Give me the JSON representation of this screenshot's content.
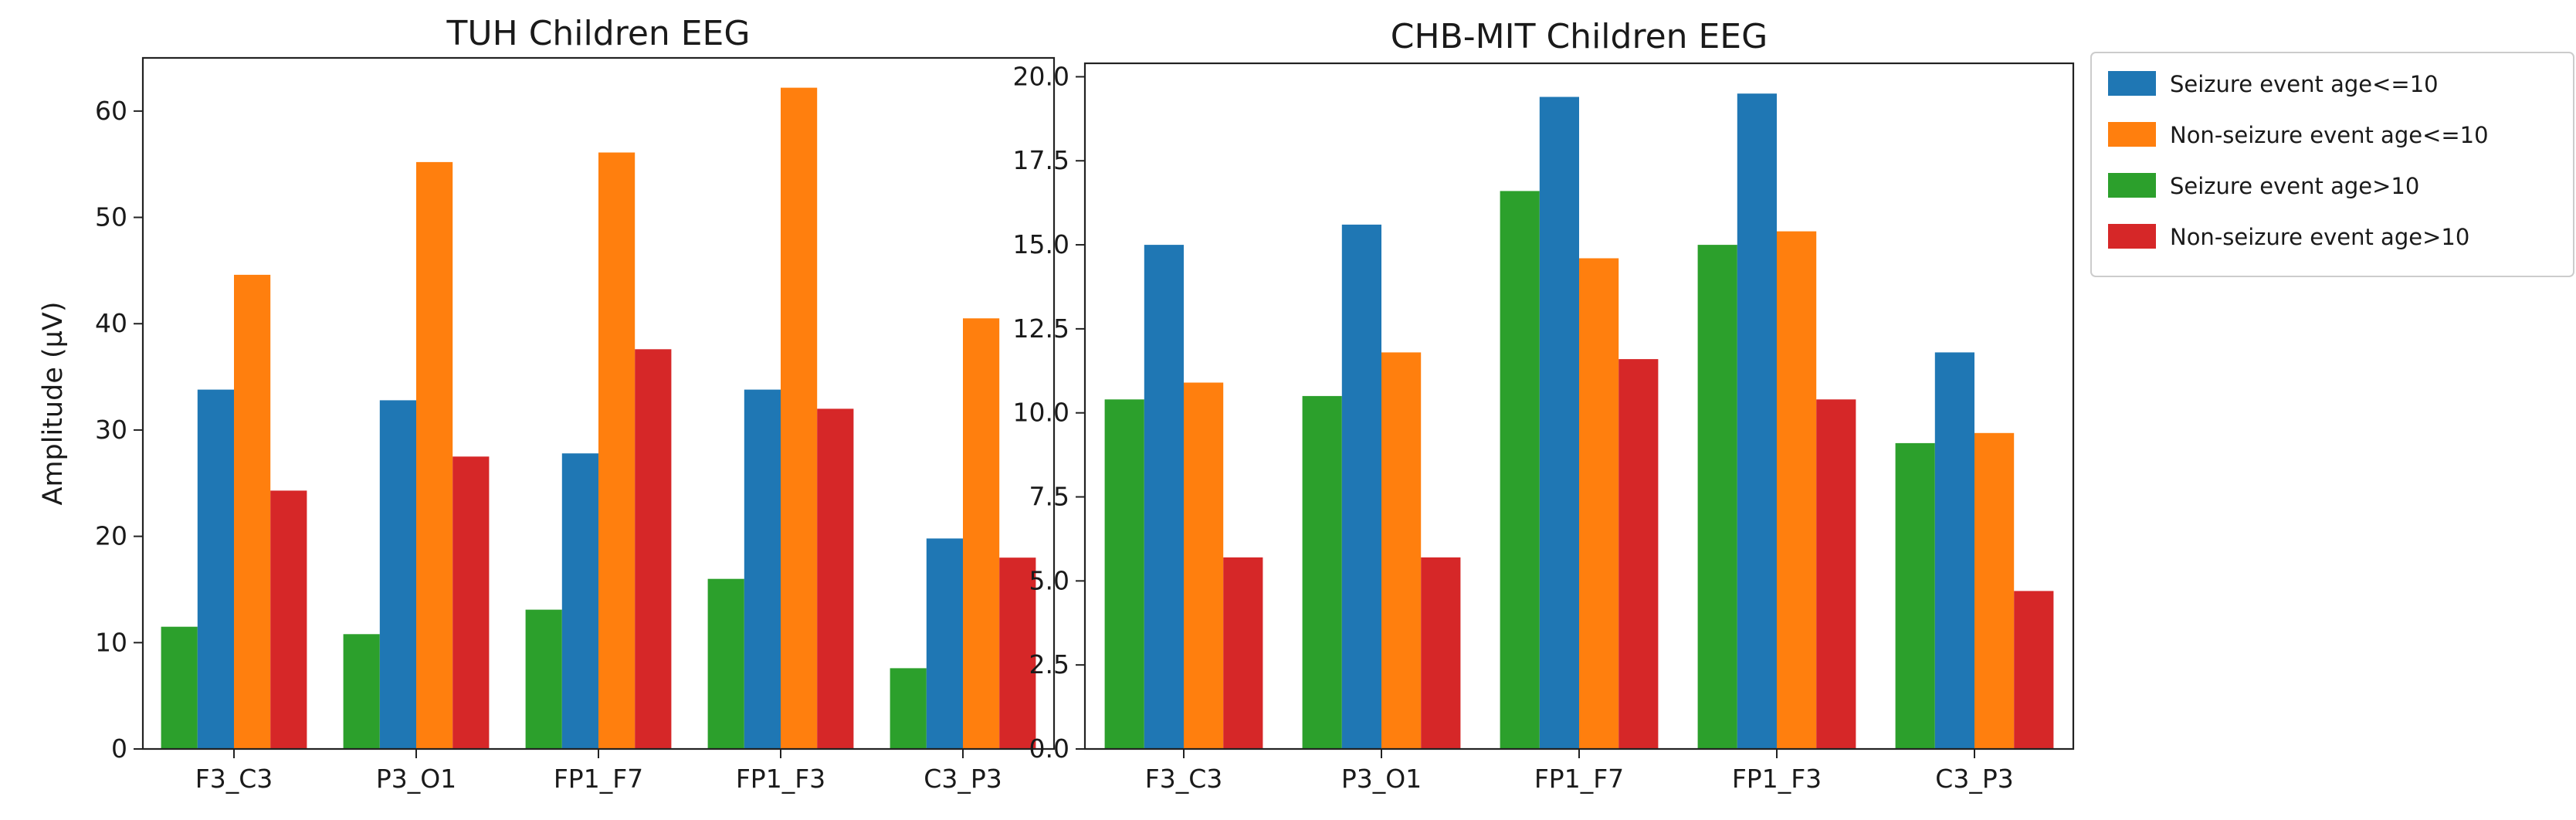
{
  "chart_data": [
    {
      "type": "bar",
      "title": "TUH Children EEG",
      "xlabel": "",
      "ylabel": "Amplitude (µV)",
      "ylim": [
        0,
        65
      ],
      "yticks": [
        0,
        10,
        20,
        30,
        40,
        50,
        60
      ],
      "categories": [
        "F3_C3",
        "P3_O1",
        "FP1_F7",
        "FP1_F3",
        "C3_P3"
      ],
      "series": [
        {
          "name": "Seizure event age>10",
          "color": "#2ca02c",
          "values": [
            11.5,
            10.8,
            13.1,
            16.0,
            7.6
          ]
        },
        {
          "name": "Seizure event age<=10",
          "color": "#1f77b4",
          "values": [
            33.8,
            32.8,
            27.8,
            33.8,
            19.8
          ]
        },
        {
          "name": "Non-seizure event age<=10",
          "color": "#ff7f0e",
          "values": [
            44.6,
            55.2,
            56.1,
            62.2,
            40.5
          ]
        },
        {
          "name": "Non-seizure event age>10",
          "color": "#d62728",
          "values": [
            24.3,
            27.5,
            37.6,
            32.0,
            18.0
          ]
        }
      ],
      "grid": false,
      "legend": "none"
    },
    {
      "type": "bar",
      "title": "CHB-MIT Children EEG",
      "xlabel": "",
      "ylabel": "",
      "ylim": [
        0,
        20.4
      ],
      "yticks": [
        "0.0",
        "2.5",
        "5.0",
        "7.5",
        "10.0",
        "12.5",
        "15.0",
        "17.5",
        "20.0"
      ],
      "categories": [
        "F3_C3",
        "P3_O1",
        "FP1_F7",
        "FP1_F3",
        "C3_P3"
      ],
      "series": [
        {
          "name": "Seizure event age>10",
          "color": "#2ca02c",
          "values": [
            10.4,
            10.5,
            16.6,
            15.0,
            9.1
          ]
        },
        {
          "name": "Seizure event age<=10",
          "color": "#1f77b4",
          "values": [
            15.0,
            15.6,
            19.4,
            19.5,
            11.8
          ]
        },
        {
          "name": "Non-seizure event age<=10",
          "color": "#ff7f0e",
          "values": [
            10.9,
            11.8,
            14.6,
            15.4,
            9.4
          ]
        },
        {
          "name": "Non-seizure event age>10",
          "color": "#d62728",
          "values": [
            5.7,
            5.7,
            11.6,
            10.4,
            4.7
          ]
        }
      ],
      "grid": false,
      "legend": "outside-top-right"
    }
  ],
  "legend": {
    "items": [
      {
        "label": "Seizure event age<=10",
        "color": "#1f77b4"
      },
      {
        "label": "Non-seizure event age<=10",
        "color": "#ff7f0e"
      },
      {
        "label": "Seizure event age>10",
        "color": "#2ca02c"
      },
      {
        "label": "Non-seizure event age>10",
        "color": "#d62728"
      }
    ]
  }
}
